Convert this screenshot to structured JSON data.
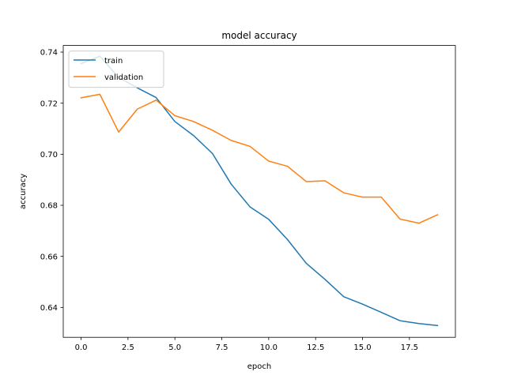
{
  "chart_data": {
    "type": "line",
    "title": "model accuracy",
    "xlabel": "epoch",
    "ylabel": "accuracy",
    "xlim": [
      -0.95,
      19.95
    ],
    "ylim": [
      0.6283,
      0.7426
    ],
    "xticks": [
      0.0,
      2.5,
      5.0,
      7.5,
      10.0,
      12.5,
      15.0,
      17.5
    ],
    "xtick_labels": [
      "0.0",
      "2.5",
      "5.0",
      "7.5",
      "10.0",
      "12.5",
      "15.0",
      "17.5"
    ],
    "yticks": [
      0.64,
      0.66,
      0.68,
      0.7,
      0.72,
      0.74
    ],
    "ytick_labels": [
      "0.64",
      "0.66",
      "0.68",
      "0.70",
      "0.72",
      "0.74"
    ],
    "grid": false,
    "legend_position": "top-left",
    "x": [
      0,
      1,
      2,
      3,
      4,
      5,
      6,
      7,
      8,
      9,
      10,
      11,
      12,
      13,
      14,
      15,
      16,
      17,
      18,
      19
    ],
    "series": [
      {
        "name": "train",
        "color": "#1f77b4",
        "values": [
          0.7355,
          0.7384,
          0.7301,
          0.726,
          0.7222,
          0.7128,
          0.7073,
          0.7003,
          0.6883,
          0.6794,
          0.6745,
          0.6666,
          0.6573,
          0.651,
          0.6442,
          0.6413,
          0.6381,
          0.6348,
          0.6337,
          0.6329
        ]
      },
      {
        "name": "validation",
        "color": "#ff7f0e",
        "values": [
          0.7221,
          0.7235,
          0.7087,
          0.7177,
          0.7212,
          0.7151,
          0.7128,
          0.7094,
          0.7054,
          0.7031,
          0.6973,
          0.6953,
          0.6893,
          0.6896,
          0.6849,
          0.6832,
          0.6832,
          0.6746,
          0.673,
          0.6763
        ]
      }
    ]
  }
}
